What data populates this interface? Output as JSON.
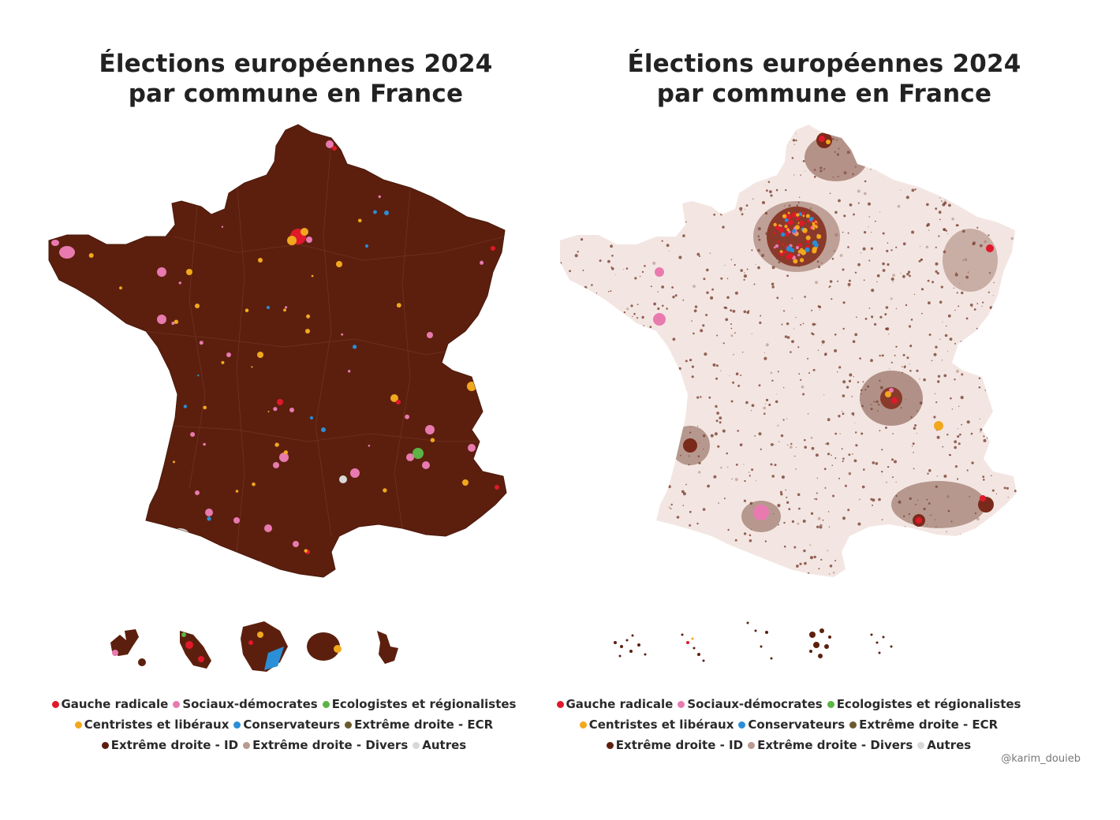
{
  "title_line1": "Élections européennes 2024",
  "title_line2": "par commune en France",
  "credit": "@karim_douieb",
  "colors": {
    "gauche_radicale": "#e0192a",
    "sociaux_democrates": "#e87ab0",
    "ecologistes": "#5cb346",
    "centristes": "#f2a81d",
    "conservateurs": "#2a8fd6",
    "ed_ecr": "#6b5a2e",
    "ed_id": "#5c1f0e",
    "ed_divers": "#b89a8f",
    "autres": "#d8d8d8"
  },
  "legend": {
    "row1": [
      {
        "label": "Gauche radicale",
        "color": "#e0192a"
      },
      {
        "label": "Sociaux-démocrates",
        "color": "#e87ab0"
      },
      {
        "label": "Ecologistes et régionalistes",
        "color": "#5cb346"
      }
    ],
    "row2": [
      {
        "label": "Centristes et libéraux",
        "color": "#f2a81d"
      },
      {
        "label": "Conservateurs",
        "color": "#2a8fd6"
      },
      {
        "label": "Extrême droite - ECR",
        "color": "#6b5a2e"
      }
    ],
    "row3": [
      {
        "label": "Extrême droite - ID",
        "color": "#5c1f0e"
      },
      {
        "label": "Extrême droite - Divers",
        "color": "#b89a8f"
      },
      {
        "label": "Autres",
        "color": "#d8d8d8"
      }
    ]
  },
  "map_icons": [
    "france-choropleth-map",
    "france-dot-map",
    "overseas-territories"
  ]
}
